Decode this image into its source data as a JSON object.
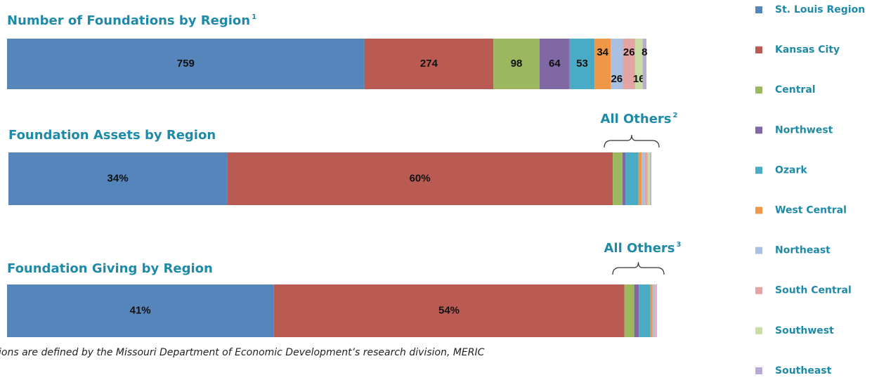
{
  "chart_data": [
    {
      "type": "bar",
      "stacked": true,
      "title": "Number of Foundations by Region",
      "title_note": "1",
      "values": [
        759,
        274,
        98,
        64,
        53,
        34,
        26,
        26,
        16,
        8
      ]
    },
    {
      "type": "bar",
      "stacked": true,
      "title": "Foundation Assets by Region",
      "values": [
        34,
        60,
        1.5,
        0.5,
        2,
        0.5,
        0.5,
        0.4,
        0.4,
        0.2
      ],
      "value_labels": [
        "34%",
        "60%",
        null,
        null,
        null,
        null,
        null,
        null,
        null,
        null
      ],
      "annotation": {
        "text": "All Others",
        "note": "2"
      }
    },
    {
      "type": "bar",
      "stacked": true,
      "title": "Foundation Giving by Region",
      "values": [
        41,
        54,
        1.5,
        0.7,
        1.8,
        0.3,
        0.3,
        0.2,
        0.1,
        0.1
      ],
      "value_labels": [
        "41%",
        "54%",
        null,
        null,
        null,
        null,
        null,
        null,
        null,
        null
      ],
      "annotation": {
        "text": "All Others",
        "note": "3"
      }
    }
  ],
  "legend": [
    {
      "name": "St. Louis Region",
      "color": "#5585ba"
    },
    {
      "name": "Kansas City",
      "color": "#b95b53"
    },
    {
      "name": "Central",
      "color": "#9bb85e"
    },
    {
      "name": "Northwest",
      "color": "#8068a4"
    },
    {
      "name": "Ozark",
      "color": "#4aabc7"
    },
    {
      "name": "West Central",
      "color": "#ef9647"
    },
    {
      "name": "Northeast",
      "color": "#a9c0e2"
    },
    {
      "name": "South Central",
      "color": "#e4a4a3"
    },
    {
      "name": "Southwest",
      "color": "#c8dca3"
    },
    {
      "name": "Southeast",
      "color": "#b8aad2"
    }
  ],
  "footnote": "ions are defined by the Missouri Department of Economic Development’s research division, MERIC"
}
